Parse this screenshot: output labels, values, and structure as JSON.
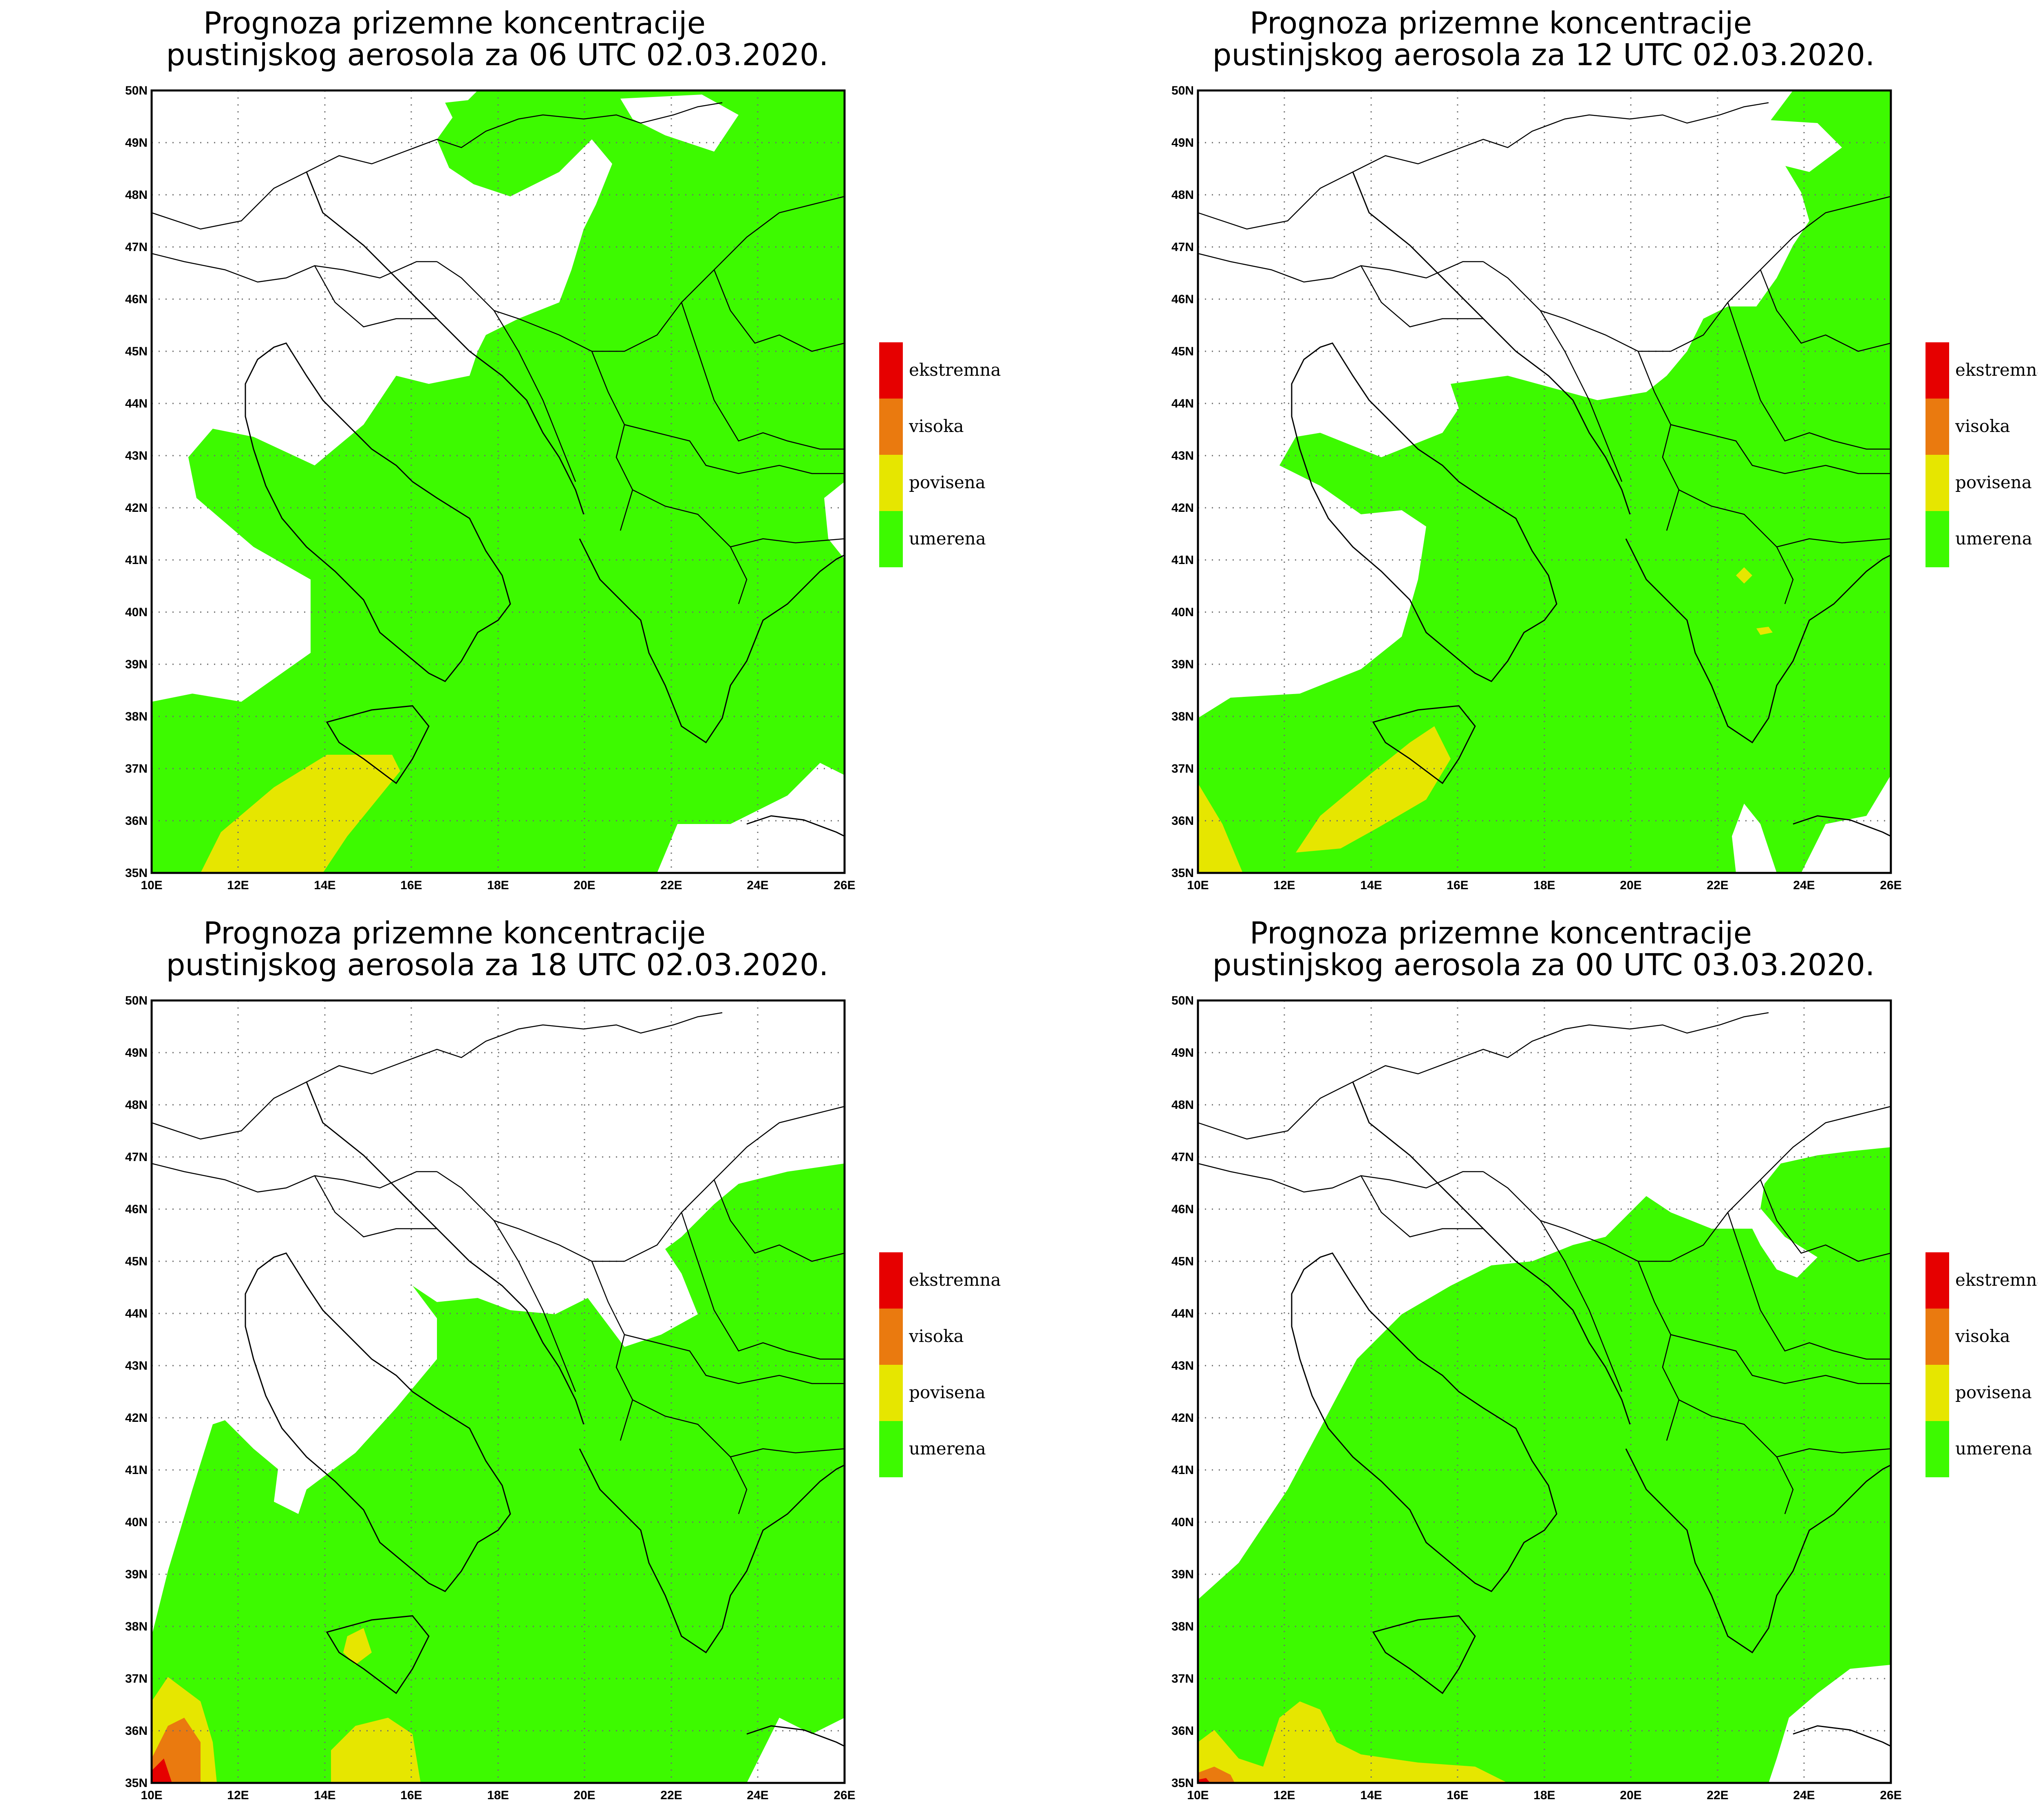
{
  "lon_ticks": [
    "10E",
    "12E",
    "14E",
    "16E",
    "18E",
    "20E",
    "22E",
    "24E",
    "26E"
  ],
  "lat_ticks": [
    "35N",
    "36N",
    "37N",
    "38N",
    "39N",
    "40N",
    "41N",
    "42N",
    "43N",
    "44N",
    "45N",
    "46N",
    "47N",
    "48N",
    "49N",
    "50N"
  ],
  "legend": [
    {
      "label": "ekstremna",
      "color": "#e60000"
    },
    {
      "label": "visoka",
      "color": "#ea7a0f"
    },
    {
      "label": "povisena",
      "color": "#e6e600"
    },
    {
      "label": "umerena",
      "color": "#3dfa00"
    }
  ],
  "panels": [
    {
      "title_line1": "Prognoza prizemne koncentracije",
      "title_line2": "pustinjskog aerosola za 06 UTC 02.03.2020."
    },
    {
      "title_line1": "Prognoza prizemne koncentracije",
      "title_line2": "pustinjskog aerosola za 12 UTC 02.03.2020."
    },
    {
      "title_line1": "Prognoza prizemne koncentracije",
      "title_line2": "pustinjskog aerosola za 18 UTC 02.03.2020."
    },
    {
      "title_line1": "Prognoza prizemne koncentracije",
      "title_line2": "pustinjskog aerosola za 00 UTC 03.03.2020."
    }
  ]
}
